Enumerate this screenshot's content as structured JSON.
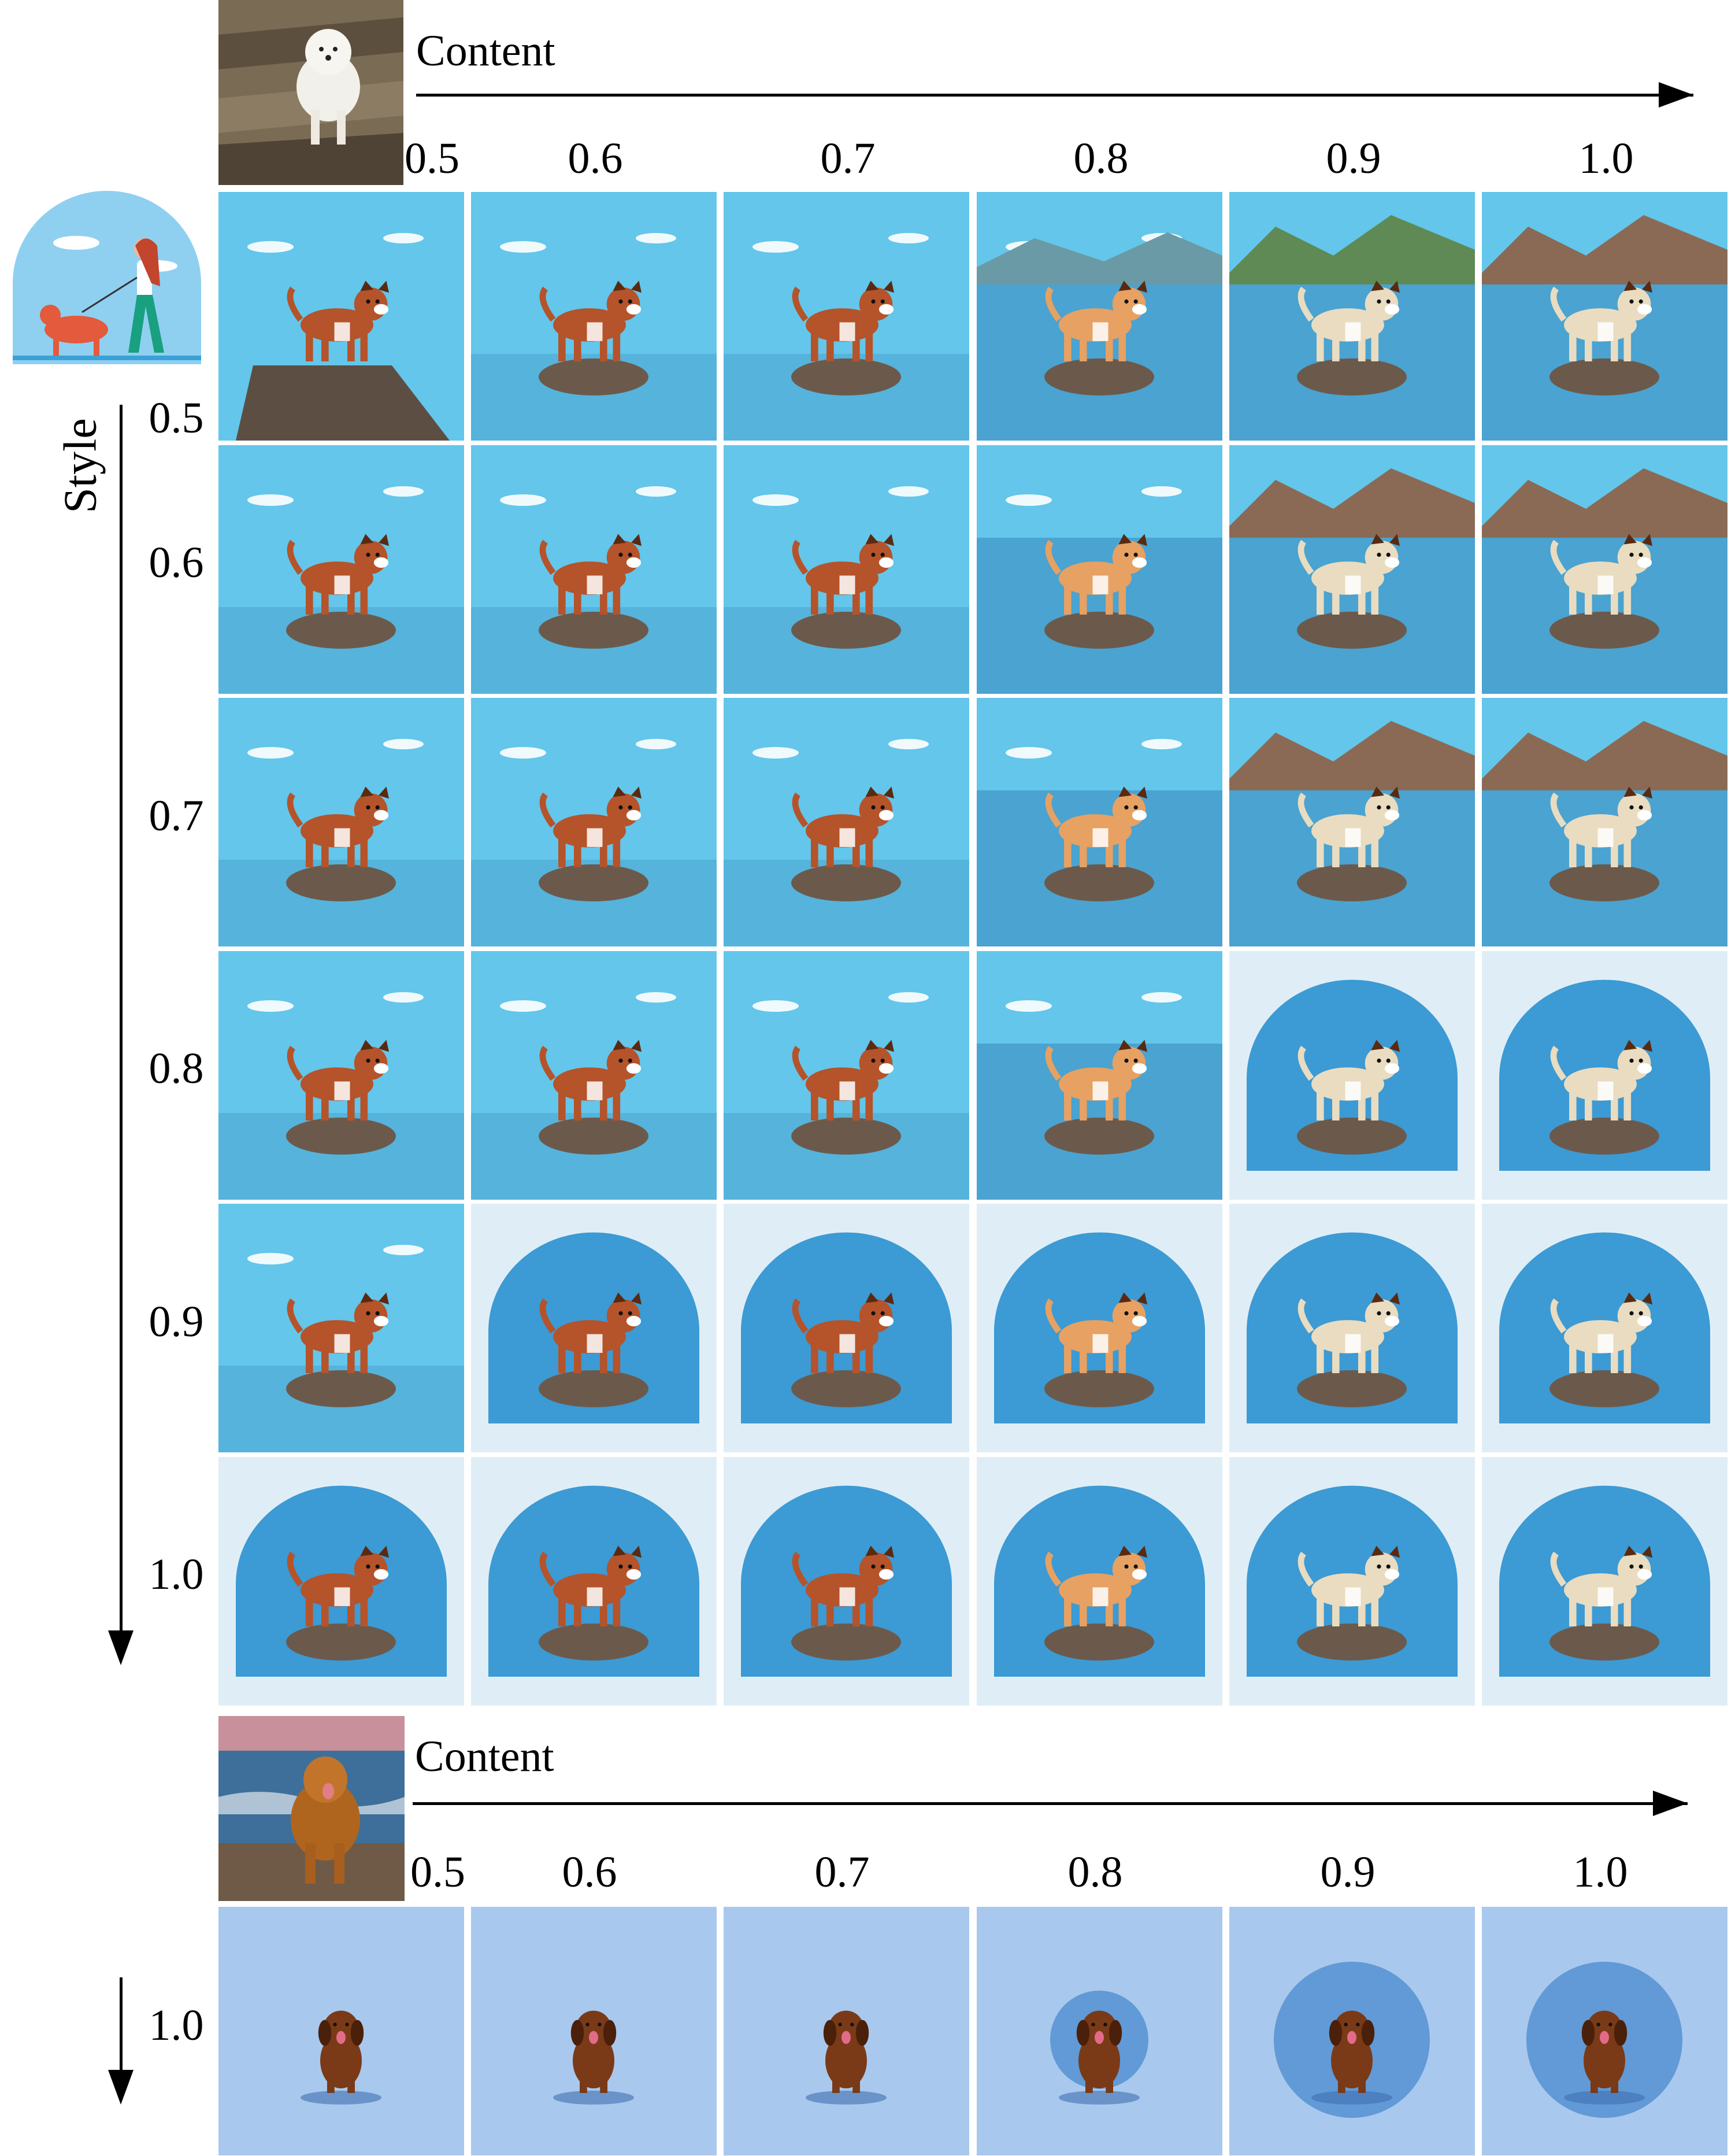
{
  "top_section": {
    "axis_label": "Content",
    "content_values": [
      "0.5",
      "0.6",
      "0.7",
      "0.8",
      "0.9",
      "1.0"
    ],
    "style_axis_label": "Style",
    "style_values": [
      "0.5",
      "0.6",
      "0.7",
      "0.8",
      "0.9",
      "1.0"
    ]
  },
  "bottom_section": {
    "axis_label": "Content",
    "content_values": [
      "0.5",
      "0.6",
      "0.7",
      "0.8",
      "0.9",
      "1.0"
    ],
    "style_values": [
      "1.0"
    ]
  },
  "colors": {
    "sky": "#63c6ea",
    "sea": "#4aa3d1",
    "dog_brown": "#b5532a",
    "dog_cream": "#e9dcc0",
    "rock": "#6b5a4b",
    "mountain_green": "#5f8a55",
    "mountain_brown": "#8a6a55",
    "bottom_bg": "#a9c8ee",
    "bottom_dog": "#7a3a17"
  }
}
